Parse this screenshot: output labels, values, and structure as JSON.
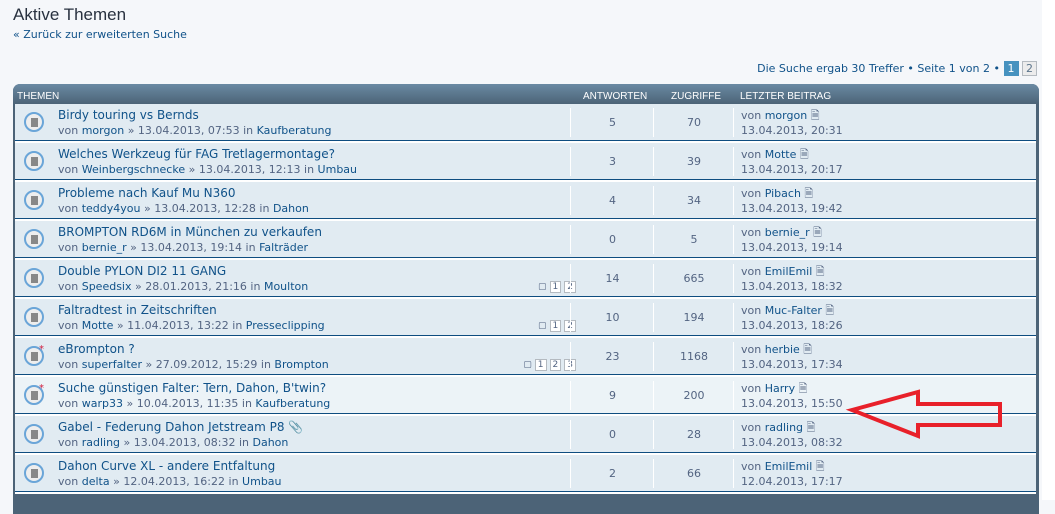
{
  "title": "Aktive Themen",
  "back": "« Zurück zur erweiterten Suche",
  "pagination": {
    "summary": "Die Suche ergab 30 Treffer • Seite 1 von 2 •",
    "current": "1",
    "next": "2"
  },
  "columns": {
    "topics": "THEMEN",
    "replies": "ANTWORTEN",
    "views": "ZUGRIFFE",
    "last": "LETZTER BEITRAG"
  },
  "accent": "#105289",
  "rows": [
    {
      "title": "Birdy touring vs Bernds",
      "author": "morgon",
      "date": "13.04.2013, 07:53",
      "forum": "Kaufberatung",
      "replies": "5",
      "views": "70",
      "last_user": "morgon",
      "last_date": "13.04.2013, 20:31"
    },
    {
      "title": "Welches Werkzeug für FAG Tretlagermontage?",
      "author": "Weinbergschnecke",
      "date": "13.04.2013, 12:13",
      "forum": "Umbau",
      "replies": "3",
      "views": "39",
      "last_user": "Motte",
      "last_date": "13.04.2013, 20:17"
    },
    {
      "title": "Probleme nach Kauf Mu N360",
      "author": "teddy4you",
      "date": "13.04.2013, 12:28",
      "forum": "Dahon",
      "replies": "4",
      "views": "34",
      "last_user": "Pibach",
      "last_date": "13.04.2013, 19:42"
    },
    {
      "title": "BROMPTON RD6M in München zu verkaufen",
      "author": "bernie_r",
      "date": "13.04.2013, 19:14",
      "forum": "Falträder",
      "replies": "0",
      "views": "5",
      "last_user": "bernie_r",
      "last_date": "13.04.2013, 19:14"
    },
    {
      "title": "Double PYLON DI2 11 GANG",
      "author": "Speedsix",
      "date": "28.01.2013, 21:16",
      "forum": "Moulton",
      "replies": "14",
      "views": "665",
      "last_user": "EmilEmil",
      "last_date": "13.04.2013, 18:32",
      "pages": [
        "1",
        "2"
      ]
    },
    {
      "title": "Faltradtest in Zeitschriften",
      "author": "Motte",
      "date": "11.04.2013, 13:22",
      "forum": "Presseclipping",
      "replies": "10",
      "views": "194",
      "last_user": "Muc-Falter",
      "last_date": "13.04.2013, 18:26",
      "pages": [
        "1",
        "2"
      ]
    },
    {
      "title": "eBrompton ?",
      "author": "superfalter",
      "date": "27.09.2012, 15:29",
      "forum": "Brompton",
      "replies": "23",
      "views": "1168",
      "last_user": "herbie",
      "last_date": "13.04.2013, 17:34",
      "pages": [
        "1",
        "2",
        "3"
      ],
      "hot": true
    },
    {
      "title": "Suche günstigen Falter: Tern, Dahon, B'twin?",
      "author": "warp33",
      "date": "10.04.2013, 11:35",
      "forum": "Kaufberatung",
      "replies": "9",
      "views": "200",
      "last_user": "Harry",
      "last_date": "13.04.2013, 15:50",
      "hot": true,
      "alt": true
    },
    {
      "title": "Gabel - Federung Dahon Jetstream P8 📎",
      "author": "radling",
      "date": "13.04.2013, 08:32",
      "forum": "Dahon",
      "replies": "0",
      "views": "28",
      "last_user": "radling",
      "last_date": "13.04.2013, 08:32"
    },
    {
      "title": "Dahon Curve XL - andere Entfaltung",
      "author": "delta",
      "date": "12.04.2013, 16:22",
      "forum": "Umbau",
      "replies": "2",
      "views": "66",
      "last_user": "EmilEmil",
      "last_date": "12.04.2013, 17:17"
    }
  ],
  "labels": {
    "by": "von",
    "sep": "»",
    "in": "in"
  },
  "annotation_color": "#e8202a"
}
